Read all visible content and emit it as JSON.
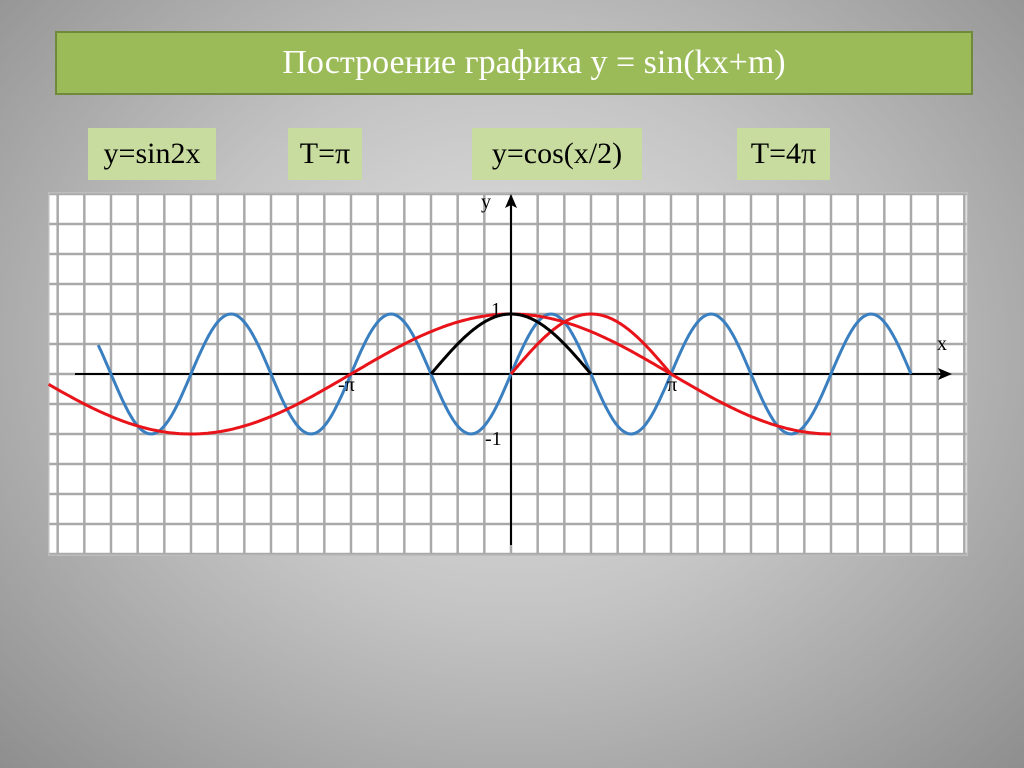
{
  "title": "Построение графика  y = sin(kx+m)",
  "labels": [
    "y=sin2x",
    "T=π",
    "y=cos(x/2)",
    "T=4π"
  ],
  "colors": {
    "title_bg": "#9bbb59",
    "label_bg": "#c9dca0",
    "blue": "#3a7fc0",
    "red": "#e8141a",
    "black": "#000000"
  },
  "chart_data": {
    "type": "line",
    "xlabel": "x",
    "ylabel": "y",
    "x_ticks": [
      "-π",
      "π"
    ],
    "y_ticks": [
      "1",
      "-1"
    ],
    "x_unit": "π",
    "grid": true,
    "series": [
      {
        "function": "sin(2x)",
        "color": "#3a7fc0",
        "x_range_pi": [
          -2.58,
          2.5
        ]
      },
      {
        "function": "cos(x/2)",
        "color": "#e8141a",
        "x_range_pi": [
          -2.89,
          2.0
        ]
      },
      {
        "function": "sin(x)",
        "color": "#e8141a",
        "x_range_pi": [
          0,
          1
        ]
      },
      {
        "function": "cos(x)",
        "color": "#000000",
        "x_range_pi": [
          -0.5,
          0.5
        ]
      }
    ]
  }
}
